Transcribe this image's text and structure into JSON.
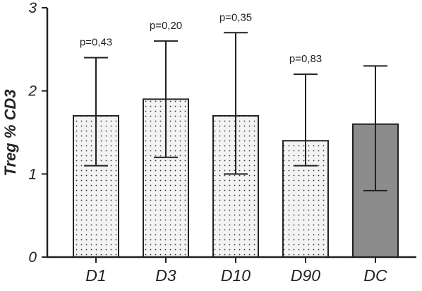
{
  "chart_data": {
    "type": "bar",
    "categories": [
      "D1",
      "D3",
      "D10",
      "D90",
      "DC"
    ],
    "values": [
      1.7,
      1.9,
      1.7,
      1.4,
      1.6
    ],
    "error_low": [
      1.1,
      1.2,
      1.0,
      1.1,
      0.8
    ],
    "error_high": [
      2.4,
      2.6,
      2.7,
      2.2,
      2.3
    ],
    "p_values": [
      "p=0,43",
      "p=0,20",
      "p=0,35",
      "p=0,83",
      ""
    ],
    "bar_fills": [
      "dotted",
      "dotted",
      "dotted",
      "dotted",
      "solid"
    ],
    "colors": {
      "control_bar": "#8c8c8c",
      "dotted_bar_bg": "#f3f3f3",
      "dot": "#333333",
      "axis": "#222222"
    },
    "title": "",
    "xlabel": "",
    "ylabel": "Treg % CD3",
    "ylim": [
      0,
      3
    ],
    "yticks": [
      "0",
      "1",
      "2",
      "3"
    ],
    "grid": false,
    "legend": "none"
  }
}
